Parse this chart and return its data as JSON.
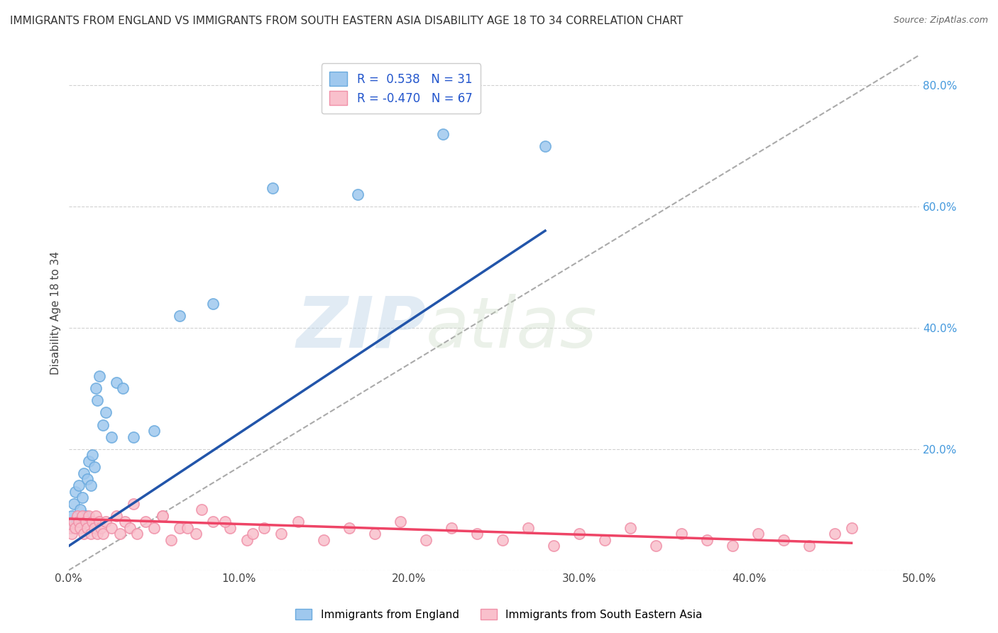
{
  "title": "IMMIGRANTS FROM ENGLAND VS IMMIGRANTS FROM SOUTH EASTERN ASIA DISABILITY AGE 18 TO 34 CORRELATION CHART",
  "source": "Source: ZipAtlas.com",
  "ylabel": "Disability Age 18 to 34",
  "xlim": [
    0.0,
    0.5
  ],
  "ylim": [
    0.0,
    0.85
  ],
  "xticks": [
    0.0,
    0.1,
    0.2,
    0.3,
    0.4,
    0.5
  ],
  "xtick_labels": [
    "0.0%",
    "10.0%",
    "20.0%",
    "30.0%",
    "40.0%",
    "50.0%"
  ],
  "yticks": [
    0.0,
    0.2,
    0.4,
    0.6,
    0.8
  ],
  "ytick_labels_right": [
    "",
    "20.0%",
    "40.0%",
    "60.0%",
    "80.0%"
  ],
  "england_color": "#9FC8EE",
  "england_edge": "#6AAADE",
  "sea_color": "#F9C0CC",
  "sea_edge": "#F090A8",
  "england_R": 0.538,
  "england_N": 31,
  "sea_R": -0.47,
  "sea_N": 67,
  "legend_label_england": "Immigrants from England",
  "legend_label_sea": "Immigrants from South Eastern Asia",
  "england_scatter_x": [
    0.001,
    0.002,
    0.003,
    0.004,
    0.005,
    0.006,
    0.007,
    0.008,
    0.009,
    0.01,
    0.011,
    0.012,
    0.013,
    0.014,
    0.015,
    0.016,
    0.017,
    0.018,
    0.02,
    0.022,
    0.025,
    0.028,
    0.032,
    0.038,
    0.05,
    0.065,
    0.085,
    0.12,
    0.17,
    0.22,
    0.28
  ],
  "england_scatter_y": [
    0.07,
    0.09,
    0.11,
    0.13,
    0.08,
    0.14,
    0.1,
    0.12,
    0.16,
    0.09,
    0.15,
    0.18,
    0.14,
    0.19,
    0.17,
    0.3,
    0.28,
    0.32,
    0.24,
    0.26,
    0.22,
    0.31,
    0.3,
    0.22,
    0.23,
    0.42,
    0.44,
    0.63,
    0.62,
    0.72,
    0.7
  ],
  "sea_scatter_x": [
    0.001,
    0.002,
    0.003,
    0.004,
    0.005,
    0.006,
    0.007,
    0.008,
    0.009,
    0.01,
    0.011,
    0.012,
    0.013,
    0.014,
    0.015,
    0.016,
    0.017,
    0.018,
    0.019,
    0.02,
    0.022,
    0.025,
    0.028,
    0.03,
    0.033,
    0.036,
    0.04,
    0.045,
    0.05,
    0.055,
    0.06,
    0.065,
    0.075,
    0.085,
    0.095,
    0.105,
    0.115,
    0.125,
    0.135,
    0.15,
    0.165,
    0.18,
    0.195,
    0.21,
    0.225,
    0.24,
    0.255,
    0.27,
    0.285,
    0.3,
    0.315,
    0.33,
    0.345,
    0.36,
    0.375,
    0.39,
    0.405,
    0.42,
    0.435,
    0.45,
    0.078,
    0.092,
    0.108,
    0.055,
    0.07,
    0.038,
    0.46
  ],
  "sea_scatter_y": [
    0.07,
    0.06,
    0.08,
    0.07,
    0.09,
    0.08,
    0.07,
    0.09,
    0.06,
    0.08,
    0.07,
    0.09,
    0.06,
    0.08,
    0.07,
    0.09,
    0.06,
    0.08,
    0.07,
    0.06,
    0.08,
    0.07,
    0.09,
    0.06,
    0.08,
    0.07,
    0.06,
    0.08,
    0.07,
    0.09,
    0.05,
    0.07,
    0.06,
    0.08,
    0.07,
    0.05,
    0.07,
    0.06,
    0.08,
    0.05,
    0.07,
    0.06,
    0.08,
    0.05,
    0.07,
    0.06,
    0.05,
    0.07,
    0.04,
    0.06,
    0.05,
    0.07,
    0.04,
    0.06,
    0.05,
    0.04,
    0.06,
    0.05,
    0.04,
    0.06,
    0.1,
    0.08,
    0.06,
    0.09,
    0.07,
    0.11,
    0.07
  ],
  "eng_line_x": [
    0.0,
    0.28
  ],
  "eng_line_y": [
    0.04,
    0.56
  ],
  "sea_line_x": [
    0.0,
    0.46
  ],
  "sea_line_y": [
    0.085,
    0.045
  ],
  "diag_line_x": [
    0.0,
    0.5
  ],
  "diag_line_y": [
    0.0,
    0.85
  ],
  "title_fontsize": 11,
  "axis_label_fontsize": 11,
  "tick_fontsize": 11,
  "watermark_zip": "ZIP",
  "watermark_atlas": "atlas",
  "background_color": "#FFFFFF",
  "grid_color": "#CCCCCC"
}
